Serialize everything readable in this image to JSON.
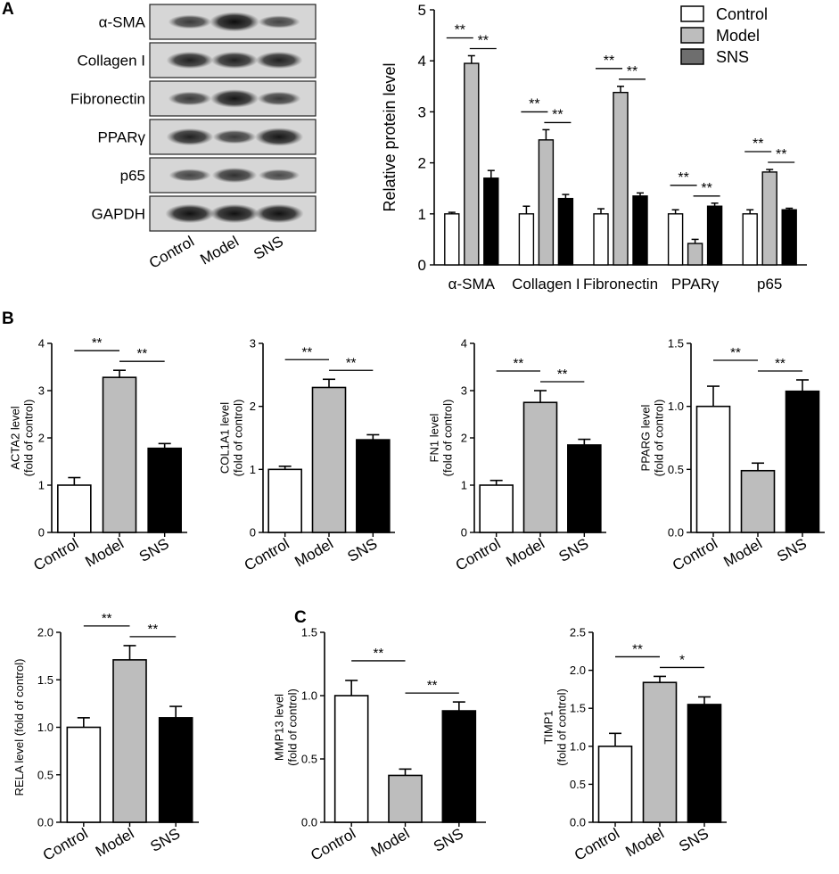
{
  "panel_letters": [
    "A",
    "B",
    "C"
  ],
  "groups": [
    "Control",
    "Model",
    "SNS"
  ],
  "colors": {
    "Control": "#ffffff",
    "Model": "#bdbdbd",
    "SNS": "#000000",
    "SNS_legend": "#6e6e6e"
  },
  "western_blot": {
    "bands": [
      "α-SMA",
      "Collagen I",
      "Fibronectin",
      "PPARγ",
      "p65",
      "GAPDH"
    ],
    "lanes": [
      "Control",
      "Model",
      "SNS"
    ],
    "intensity": [
      [
        0.55,
        1.0,
        0.45
      ],
      [
        0.8,
        0.8,
        0.8
      ],
      [
        0.55,
        0.9,
        0.55
      ],
      [
        0.8,
        0.55,
        0.9
      ],
      [
        0.45,
        0.65,
        0.4
      ],
      [
        0.95,
        0.95,
        0.95
      ]
    ]
  },
  "chart_data": [
    {
      "id": "A",
      "type": "bar",
      "ylabel": "Relative protein level",
      "ylim": [
        0,
        5
      ],
      "yticks": [
        "0",
        "1",
        "2",
        "3",
        "4",
        "5"
      ],
      "categories": [
        "α-SMA",
        "Collagen I",
        "Fibronectin",
        "PPARγ",
        "p65"
      ],
      "series": [
        {
          "name": "Control",
          "values": [
            1.0,
            1.0,
            1.0,
            1.0,
            1.0
          ],
          "errors": [
            0.03,
            0.15,
            0.1,
            0.08,
            0.08
          ]
        },
        {
          "name": "Model",
          "values": [
            3.95,
            2.45,
            3.38,
            0.42,
            1.82
          ],
          "errors": [
            0.15,
            0.2,
            0.12,
            0.08,
            0.05
          ]
        },
        {
          "name": "SNS",
          "values": [
            1.7,
            1.3,
            1.35,
            1.15,
            1.08
          ],
          "errors": [
            0.15,
            0.08,
            0.06,
            0.06,
            0.03
          ]
        }
      ],
      "legend": [
        "Control",
        "Model",
        "SNS"
      ],
      "legend_position": "top-right",
      "significance": [
        "**",
        "**",
        "**",
        "**",
        "**",
        "**",
        "**",
        "**",
        "**",
        "**"
      ]
    },
    {
      "id": "B1",
      "type": "bar",
      "ylabel_lines": [
        "ACTA2 level",
        "(fold of control)"
      ],
      "ylim": [
        0,
        4
      ],
      "yticks": [
        "0",
        "1",
        "2",
        "3",
        "4"
      ],
      "categories": [
        "Control",
        "Model",
        "SNS"
      ],
      "values": [
        1.0,
        3.28,
        1.78
      ],
      "errors": [
        0.16,
        0.15,
        0.1
      ],
      "significance": [
        "**",
        "**"
      ]
    },
    {
      "id": "B2",
      "type": "bar",
      "ylabel_lines": [
        "COL1A1 level",
        "(fold of control)"
      ],
      "ylim": [
        0,
        3
      ],
      "yticks": [
        "0",
        "1",
        "2",
        "3"
      ],
      "categories": [
        "Control",
        "Model",
        "SNS"
      ],
      "values": [
        1.0,
        2.3,
        1.47
      ],
      "errors": [
        0.05,
        0.13,
        0.08
      ],
      "significance": [
        "**",
        "**"
      ]
    },
    {
      "id": "B3",
      "type": "bar",
      "ylabel_lines": [
        "FN1 level",
        "(fold of control)"
      ],
      "ylim": [
        0,
        4
      ],
      "yticks": [
        "0",
        "1",
        "2",
        "3",
        "4"
      ],
      "categories": [
        "Control",
        "Model",
        "SNS"
      ],
      "values": [
        1.0,
        2.75,
        1.85
      ],
      "errors": [
        0.1,
        0.25,
        0.12
      ],
      "significance": [
        "**",
        "**"
      ]
    },
    {
      "id": "B4",
      "type": "bar",
      "ylabel_lines": [
        "PPARG level",
        "(fold of control)"
      ],
      "ylim": [
        0,
        1.5
      ],
      "yticks": [
        "0.0",
        "0.5",
        "1.0",
        "1.5"
      ],
      "categories": [
        "Control",
        "Model",
        "SNS"
      ],
      "values": [
        1.0,
        0.49,
        1.12
      ],
      "errors": [
        0.16,
        0.06,
        0.09
      ],
      "significance": [
        "**",
        "**"
      ]
    },
    {
      "id": "B5",
      "type": "bar",
      "ylabel_lines": [
        "RELA level (fold of control)"
      ],
      "ylim": [
        0,
        2.0
      ],
      "yticks": [
        "0.0",
        "0.5",
        "1.0",
        "1.5",
        "2.0"
      ],
      "categories": [
        "Control",
        "Model",
        "SNS"
      ],
      "values": [
        1.0,
        1.71,
        1.1
      ],
      "errors": [
        0.1,
        0.15,
        0.12
      ],
      "significance": [
        "**",
        "**"
      ]
    },
    {
      "id": "C1",
      "type": "bar",
      "ylabel_lines": [
        "MMP13 level",
        "(fold of control)"
      ],
      "ylim": [
        0,
        1.5
      ],
      "yticks": [
        "0.0",
        "0.5",
        "1.0",
        "1.5"
      ],
      "categories": [
        "Control",
        "Model",
        "SNS"
      ],
      "values": [
        1.0,
        0.37,
        0.88
      ],
      "errors": [
        0.12,
        0.05,
        0.07
      ],
      "significance": [
        "**",
        "**"
      ]
    },
    {
      "id": "C2",
      "type": "bar",
      "ylabel_lines": [
        "TIMP1",
        "(fold of control)"
      ],
      "ylim": [
        0,
        2.5
      ],
      "yticks": [
        "0.0",
        "0.5",
        "1.0",
        "1.5",
        "2.0",
        "2.5"
      ],
      "categories": [
        "Control",
        "Model",
        "SNS"
      ],
      "values": [
        1.0,
        1.84,
        1.55
      ],
      "errors": [
        0.17,
        0.08,
        0.1
      ],
      "significance": [
        "**",
        "*"
      ]
    }
  ]
}
